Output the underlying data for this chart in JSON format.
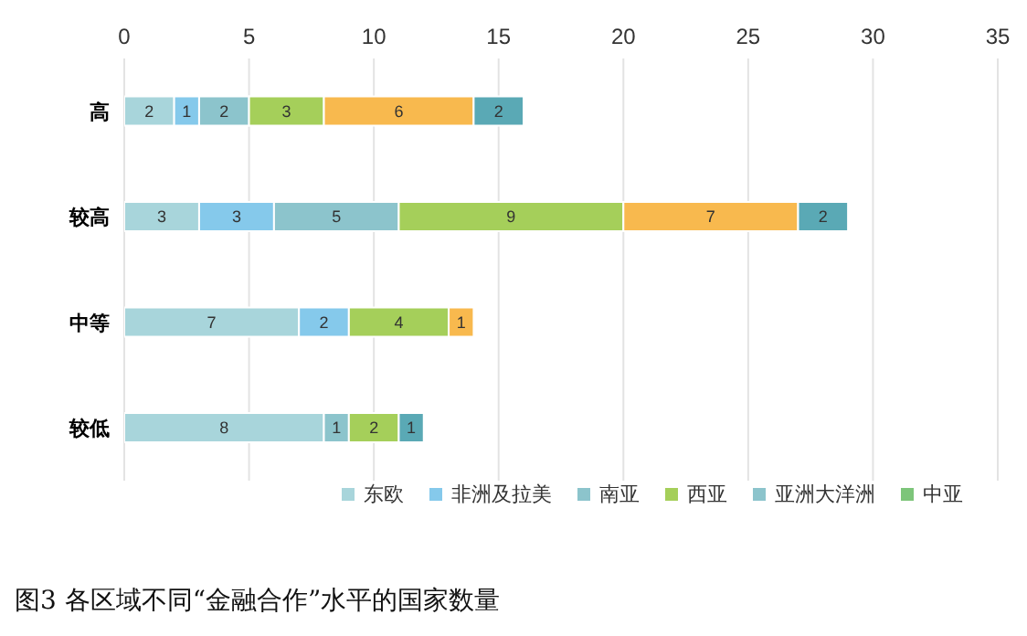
{
  "chart_data": {
    "type": "bar",
    "orientation": "horizontal",
    "stacked": true,
    "title": "图3 各区域不同“金融合作”水平的国家数量",
    "categories": [
      "高",
      "较高",
      "中等",
      "较低"
    ],
    "series": [
      {
        "name": "东欧",
        "color": "#a8d5db",
        "values": [
          2,
          3,
          7,
          8
        ]
      },
      {
        "name": "非洲及拉美",
        "color": "#85c9eb",
        "values": [
          1,
          3,
          2,
          null
        ]
      },
      {
        "name": "南亚",
        "color": "#8cc4cc",
        "values": [
          2,
          5,
          null,
          1
        ]
      },
      {
        "name": "西亚",
        "color": "#a5cf5a",
        "values": [
          3,
          9,
          4,
          2
        ]
      },
      {
        "color": "#f8b94e",
        "values": [
          6,
          7,
          1,
          null
        ]
      },
      {
        "color": "#5aa9b5",
        "values": [
          2,
          2,
          null,
          1
        ]
      },
      {
        "name": "亚洲大洋洲",
        "color": "#8cc4cc",
        "values": [
          null,
          null,
          null,
          null
        ]
      },
      {
        "name": "中亚",
        "color": "#7dc57a",
        "values": [
          null,
          null,
          null,
          null
        ]
      }
    ],
    "xlim": [
      0,
      35
    ],
    "xticks": [
      0,
      5,
      10,
      15,
      20,
      25,
      30,
      35
    ],
    "grid": "x",
    "legend": "bottom",
    "data_labels": true
  }
}
